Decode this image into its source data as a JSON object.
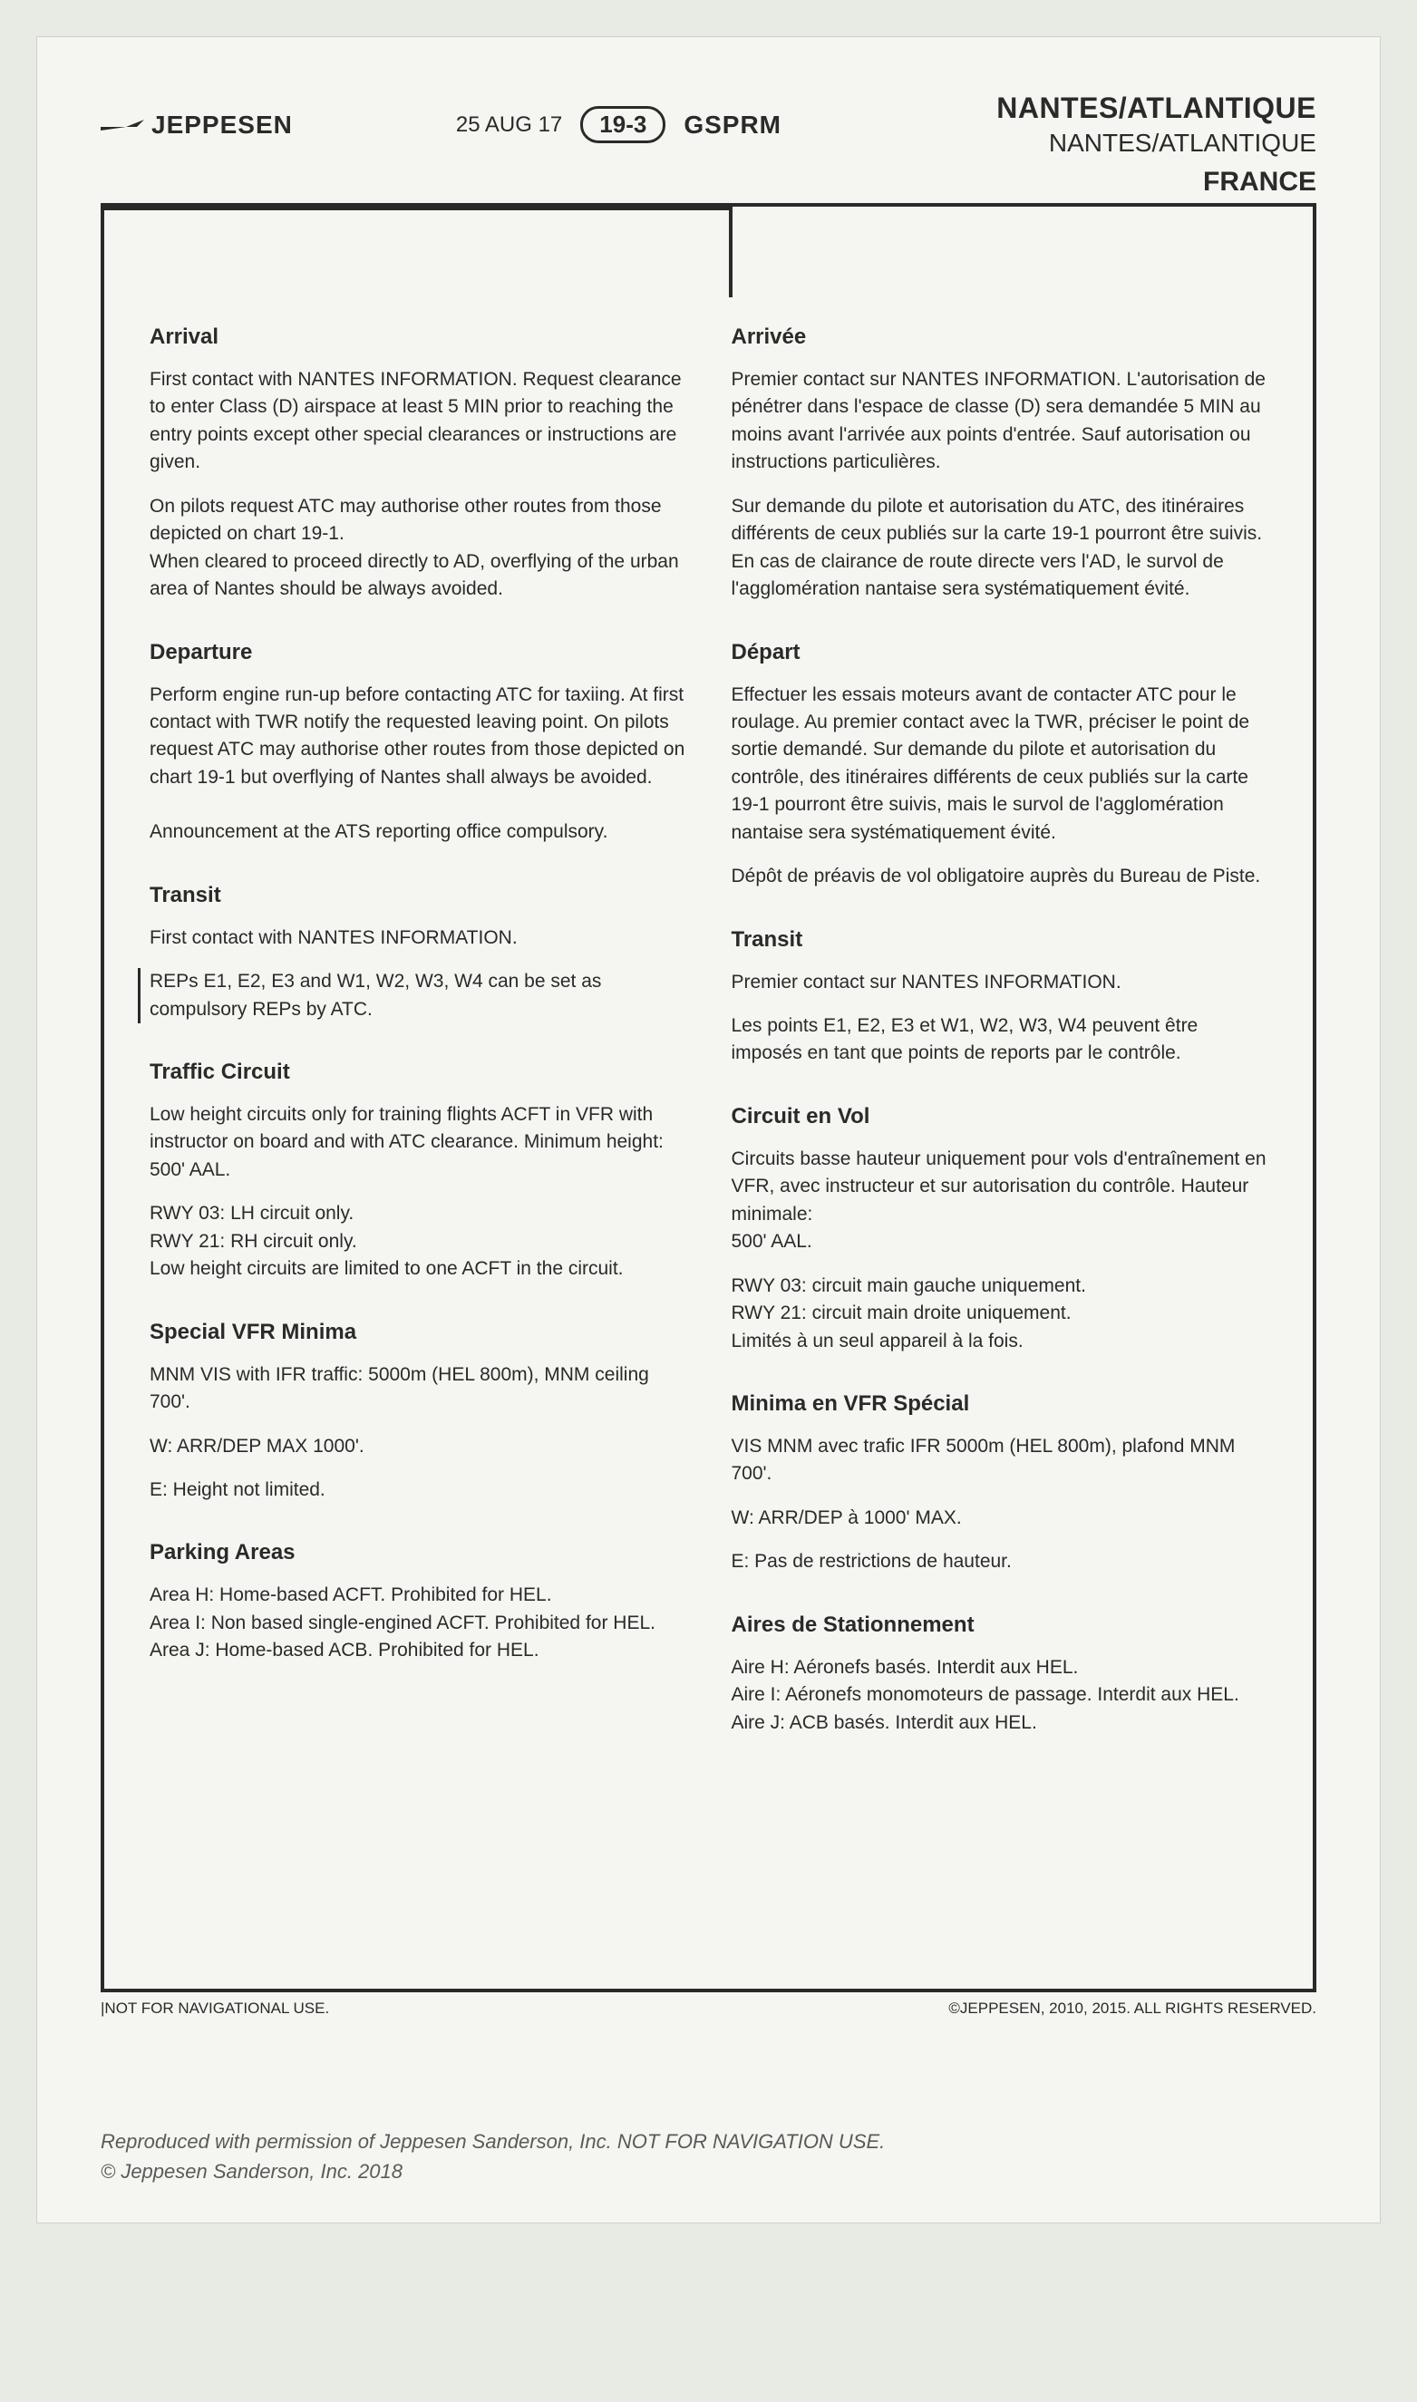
{
  "header": {
    "brand": "JEPPESEN",
    "date": "25 AUG 17",
    "page_code": "19-3",
    "doc_code": "GSPRM",
    "airport_main": "NANTES/ATLANTIQUE",
    "airport_sub": "NANTES/ATLANTIQUE",
    "country": "FRANCE"
  },
  "left": {
    "arrival": {
      "title": "Arrival",
      "p1": "First contact with NANTES INFORMATION. Request clearance to enter Class (D) airspace at least 5 MIN prior to reaching the entry points except other special clearances or instructions are given.",
      "p2": "On pilots request ATC may authorise other routes from those depicted on chart 19-1.\nWhen cleared to proceed directly to AD, overflying of the urban area of Nantes should be always avoided."
    },
    "departure": {
      "title": "Departure",
      "p1": "Perform engine run-up before contacting ATC for taxiing. At first contact with TWR notify the requested leaving point. On pilots request ATC may authorise other routes from those depicted on chart 19-1 but overflying of Nantes shall always be avoided.",
      "p2": "Announcement at the ATS reporting office compulsory."
    },
    "transit": {
      "title": "Transit",
      "p1": "First contact with NANTES INFORMATION.",
      "p2": "REPs E1, E2, E3 and W1, W2, W3, W4 can be set as compulsory REPs by ATC."
    },
    "traffic": {
      "title": "Traffic Circuit",
      "p1": "Low height circuits only for training flights ACFT in VFR with instructor on board and with ATC clearance. Minimum height: 500' AAL.",
      "p2": "RWY 03: LH circuit only.\nRWY 21: RH circuit only.\nLow height circuits are limited to one ACFT in the circuit."
    },
    "svfr": {
      "title": "Special VFR Minima",
      "p1": "MNM VIS with IFR traffic: 5000m (HEL 800m), MNM ceiling 700'.",
      "p2": "W: ARR/DEP MAX 1000'.",
      "p3": "E: Height not limited."
    },
    "parking": {
      "title": "Parking Areas",
      "p1": "Area H: Home-based ACFT. Prohibited for HEL.\nArea I: Non based single-engined ACFT. Prohibited for HEL.\nArea J: Home-based ACB. Prohibited for HEL."
    }
  },
  "right": {
    "arrival": {
      "title": "Arrivée",
      "p1": "Premier contact sur NANTES INFORMATION. L'autorisation de pénétrer dans l'espace de classe (D) sera demandée 5 MIN au moins avant l'arrivée aux points d'entrée. Sauf autorisation ou instructions particulières.",
      "p2": "Sur demande du pilote et autorisation du ATC, des itinéraires différents de ceux publiés sur la carte 19-1 pourront être suivis. En cas de clairance de route directe vers l'AD, le survol de l'agglomération nantaise sera systématiquement évité."
    },
    "departure": {
      "title": "Départ",
      "p1": "Effectuer les essais moteurs avant de contacter ATC pour le roulage. Au premier contact avec la TWR, préciser le point de sortie demandé. Sur demande du pilote et autorisation du contrôle, des itinéraires différents de ceux publiés sur la carte 19-1 pourront être suivis, mais le survol de l'agglomération nantaise sera systématiquement évité.",
      "p2": "Dépôt de préavis de vol obligatoire auprès du Bureau de Piste."
    },
    "transit": {
      "title": "Transit",
      "p1": "Premier contact sur NANTES INFORMATION.",
      "p2": "Les points E1, E2, E3 et W1, W2, W3, W4 peuvent être imposés en tant que points de reports par le contrôle."
    },
    "traffic": {
      "title": "Circuit en Vol",
      "p1": "Circuits basse hauteur uniquement pour vols d'entraînement en VFR, avec instructeur et sur autorisation du contrôle. Hauteur minimale:\n500' AAL.",
      "p2": "RWY 03: circuit main gauche uniquement.\nRWY 21: circuit main droite uniquement.\nLimités à un seul appareil à la fois."
    },
    "svfr": {
      "title": "Minima en VFR Spécial",
      "p1": "VIS MNM avec trafic IFR 5000m (HEL 800m), plafond MNM 700'.",
      "p2": "W: ARR/DEP à 1000' MAX.",
      "p3": "E: Pas de restrictions de hauteur."
    },
    "parking": {
      "title": "Aires de Stationnement",
      "p1": "Aire H: Aéronefs basés. Interdit aux HEL.\nAire I: Aéronefs monomoteurs de passage. Interdit aux HEL.\nAire J: ACB basés. Interdit aux HEL."
    }
  },
  "footer": {
    "left": "|NOT FOR NAVIGATIONAL USE.",
    "right": "©JEPPESEN, 2010, 2015. ALL RIGHTS RESERVED."
  },
  "repro": {
    "line1": "Reproduced with permission of Jeppesen Sanderson, Inc. NOT FOR NAVIGATION USE.",
    "line2": "© Jeppesen Sanderson, Inc. 2018"
  }
}
